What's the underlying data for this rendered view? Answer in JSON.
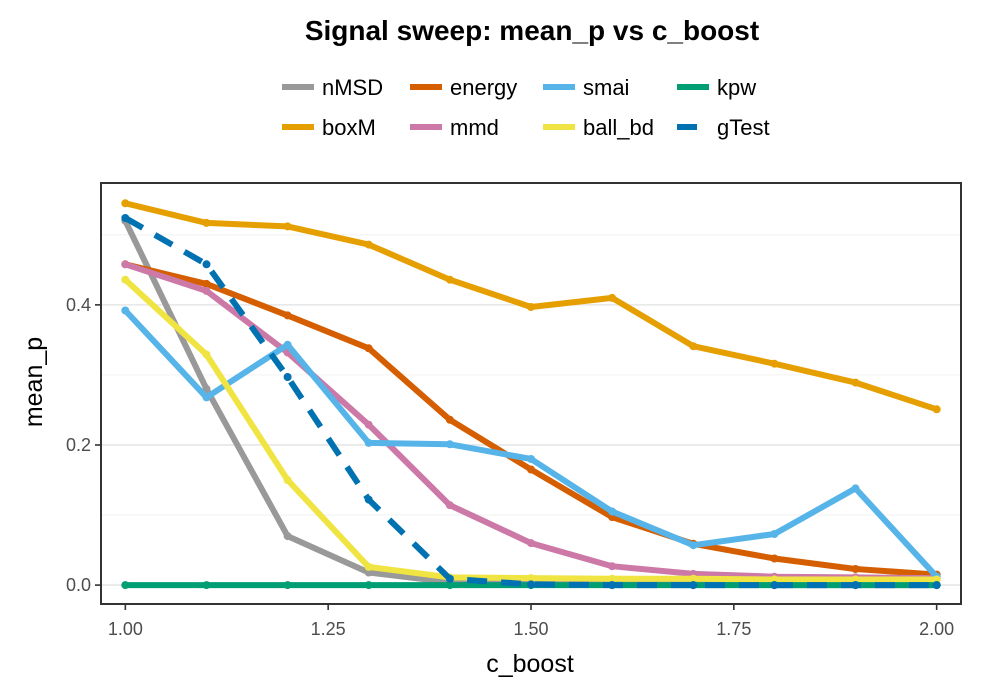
{
  "chart_data": {
    "type": "line",
    "title": "Signal sweep: mean_p vs c_boost",
    "xlabel": "c_boost",
    "ylabel": "mean_p",
    "xlim": [
      0.97,
      2.03
    ],
    "ylim": [
      -0.027,
      0.574
    ],
    "xticks": [
      1.0,
      1.25,
      1.5,
      1.75,
      2.0
    ],
    "xtick_labels": [
      "1.00",
      "1.25",
      "1.50",
      "1.75",
      "2.00"
    ],
    "yticks": [
      0.0,
      0.2,
      0.4
    ],
    "ytick_labels": [
      "0.0",
      "0.2",
      "0.4"
    ],
    "grid": "horizontal",
    "legend_position": "top",
    "x": [
      1.0,
      1.1,
      1.2,
      1.3,
      1.4,
      1.5,
      1.6,
      1.7,
      1.8,
      1.9,
      2.0
    ],
    "series": [
      {
        "name": "nMSD",
        "color": "#999999",
        "dash": "solid",
        "values": [
          0.52,
          0.28,
          0.07,
          0.018,
          0.004,
          0.002,
          0.001,
          0.001,
          0.0,
          0.0,
          0.0
        ]
      },
      {
        "name": "boxM",
        "color": "#E69F00",
        "dash": "solid",
        "values": [
          0.545,
          0.517,
          0.512,
          0.486,
          0.436,
          0.397,
          0.41,
          0.341,
          0.316,
          0.289,
          0.251
        ]
      },
      {
        "name": "energy",
        "color": "#D55E00",
        "dash": "solid",
        "values": [
          0.458,
          0.43,
          0.385,
          0.338,
          0.236,
          0.165,
          0.097,
          0.059,
          0.038,
          0.023,
          0.015
        ]
      },
      {
        "name": "mmd",
        "color": "#CC79A7",
        "dash": "solid",
        "values": [
          0.458,
          0.42,
          0.332,
          0.229,
          0.114,
          0.06,
          0.027,
          0.016,
          0.012,
          0.011,
          0.01
        ]
      },
      {
        "name": "smai",
        "color": "#56B4E9",
        "dash": "solid",
        "values": [
          0.392,
          0.268,
          0.343,
          0.203,
          0.201,
          0.18,
          0.105,
          0.057,
          0.073,
          0.138,
          0.012
        ]
      },
      {
        "name": "ball_bd",
        "color": "#F0E442",
        "dash": "solid",
        "values": [
          0.436,
          0.329,
          0.15,
          0.026,
          0.011,
          0.01,
          0.009,
          0.009,
          0.008,
          0.008,
          0.008
        ]
      },
      {
        "name": "kpw",
        "color": "#009E73",
        "dash": "solid",
        "values": [
          0.0,
          0.0,
          0.0,
          0.0,
          0.0,
          0.0,
          0.0,
          0.0,
          0.0,
          0.0,
          0.0
        ]
      },
      {
        "name": "gTest",
        "color": "#0072B2",
        "dash": "dashed",
        "values": [
          0.524,
          0.458,
          0.297,
          0.122,
          0.009,
          0.001,
          0.0,
          0.0,
          0.0,
          0.0,
          0.0
        ]
      }
    ]
  }
}
